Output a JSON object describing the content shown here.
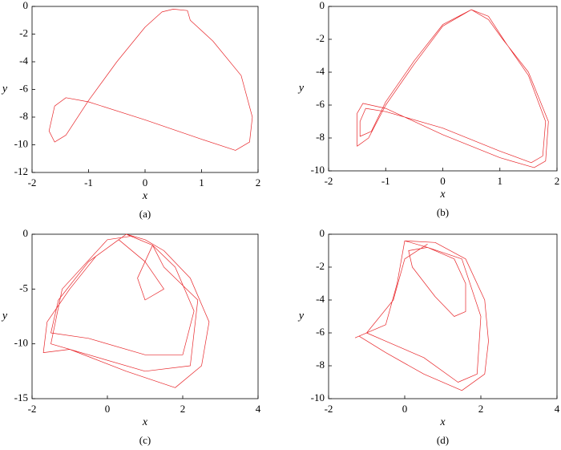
{
  "chart_data": [
    {
      "type": "line",
      "caption": "(a)",
      "xlabel": "x",
      "ylabel": "y",
      "xlim": [
        -2,
        2
      ],
      "ylim": [
        -12,
        0
      ],
      "xticks": [
        -2,
        -1,
        0,
        1,
        2
      ],
      "yticks": [
        0,
        -2,
        -4,
        -6,
        -8,
        -10,
        -12
      ],
      "x": [
        0.5,
        0.75,
        0.8,
        1.2,
        1.7,
        1.9,
        1.85,
        1.6,
        1.0,
        0,
        -1,
        -1.4,
        -1.6,
        -1.7,
        -1.6,
        -1.4,
        -1,
        -0.5,
        0,
        0.3,
        0.5
      ],
      "series": [
        {
          "color": "#e8262a",
          "values": [
            -0.2,
            -0.3,
            -1,
            -2.5,
            -5,
            -8,
            -9.8,
            -10.4,
            -9.6,
            -8.2,
            -6.9,
            -6.6,
            -7.2,
            -9,
            -9.8,
            -9.3,
            -6.8,
            -4,
            -1.5,
            -0.4,
            -0.2
          ]
        }
      ]
    },
    {
      "type": "line",
      "caption": "(b)",
      "xlabel": "x",
      "ylabel": "y",
      "xlim": [
        -2,
        2
      ],
      "ylim": [
        -10,
        0
      ],
      "xticks": [
        -2,
        -1,
        0,
        1,
        2
      ],
      "yticks": [
        0,
        -2,
        -4,
        -6,
        -8,
        -10
      ],
      "x": [
        0.5,
        0.8,
        1.05,
        1.5,
        1.85,
        1.8,
        1.6,
        1,
        0,
        -1,
        -1.4,
        -1.5,
        -1.5,
        -1.3,
        -1,
        -0.5,
        0,
        0.5,
        0.8,
        1.1,
        1.5,
        1.8,
        1.75,
        1.55,
        1,
        0,
        -1,
        -1.35,
        -1.45,
        -1.45,
        -1.25,
        -1,
        -0.5,
        0,
        0.5
      ],
      "series": [
        {
          "color": "#e8262a",
          "values": [
            -0.2,
            -0.8,
            -2,
            -4,
            -7,
            -9.4,
            -9.8,
            -9.2,
            -7.8,
            -6.2,
            -5.9,
            -6.5,
            -8.5,
            -8,
            -6,
            -3.5,
            -1.2,
            -0.2,
            -0.6,
            -2.2,
            -4.2,
            -7,
            -9.1,
            -9.5,
            -8.8,
            -7.4,
            -6.4,
            -6.2,
            -7,
            -7.9,
            -7.6,
            -5.8,
            -3.3,
            -1.1,
            -0.2
          ]
        }
      ]
    },
    {
      "type": "line",
      "caption": "(c)",
      "xlabel": "x",
      "ylabel": "y",
      "xlim": [
        -2,
        4
      ],
      "ylim": [
        -15,
        0
      ],
      "xticks": [
        -2,
        0,
        2,
        4
      ],
      "yticks": [
        0,
        -5,
        -10,
        -15
      ],
      "x": [
        0.5,
        1,
        1.5,
        2.2,
        2.7,
        2.5,
        1.8,
        0.5,
        -1,
        -1.7,
        -1.6,
        -1,
        -0.3,
        0.5,
        1.2,
        1.8,
        2.3,
        2,
        1,
        -0.5,
        -1.5,
        -1.3,
        -0.5,
        0.3,
        1,
        1.5,
        1,
        0.8,
        1.2,
        1.5,
        2.4,
        2.2,
        1,
        -1.5,
        -1.2,
        0,
        0.6
      ],
      "series": [
        {
          "color": "#e8262a",
          "values": [
            0,
            -0.5,
            -1.5,
            -4,
            -8,
            -12,
            -14,
            -12.5,
            -10.5,
            -10.8,
            -8,
            -5,
            -2,
            0,
            -1,
            -3,
            -7,
            -11,
            -11,
            -9.5,
            -9,
            -6,
            -2.5,
            -0.5,
            -2.5,
            -5,
            -6,
            -4,
            -1,
            -3,
            -6,
            -12,
            -12.5,
            -10,
            -5,
            -0.5,
            -0.2
          ]
        }
      ]
    },
    {
      "type": "line",
      "caption": "(d)",
      "xlabel": "x",
      "ylabel": "y",
      "xlim": [
        -2,
        4
      ],
      "ylim": [
        -10,
        0
      ],
      "xticks": [
        -2,
        0,
        2,
        4
      ],
      "yticks": [
        0,
        -2,
        -4,
        -6,
        -8,
        -10
      ],
      "x": [
        0,
        0.8,
        1.6,
        2.1,
        2.2,
        2.1,
        1.5,
        0.5,
        -0.5,
        -1.2,
        -1.3,
        -0.5,
        -0.2,
        0,
        0.6,
        1.3,
        1.6,
        1.6,
        1.3,
        0.8,
        0.2,
        0.1,
        0.6,
        1.5,
        2,
        1.9,
        1.4,
        0.5,
        -0.5,
        -1,
        -0.3,
        0,
        0.6
      ],
      "series": [
        {
          "color": "#e8262a",
          "values": [
            -0.4,
            -0.5,
            -1.5,
            -4,
            -6.5,
            -8.5,
            -9.5,
            -8.5,
            -7.2,
            -6.2,
            -6.3,
            -5.5,
            -3,
            -0.4,
            -0.8,
            -1.5,
            -3,
            -4.7,
            -5,
            -3.8,
            -2,
            -1,
            -0.8,
            -1.5,
            -5,
            -8.5,
            -9,
            -7.5,
            -6.5,
            -6,
            -4,
            -1.5,
            -0.6
          ]
        }
      ]
    }
  ]
}
